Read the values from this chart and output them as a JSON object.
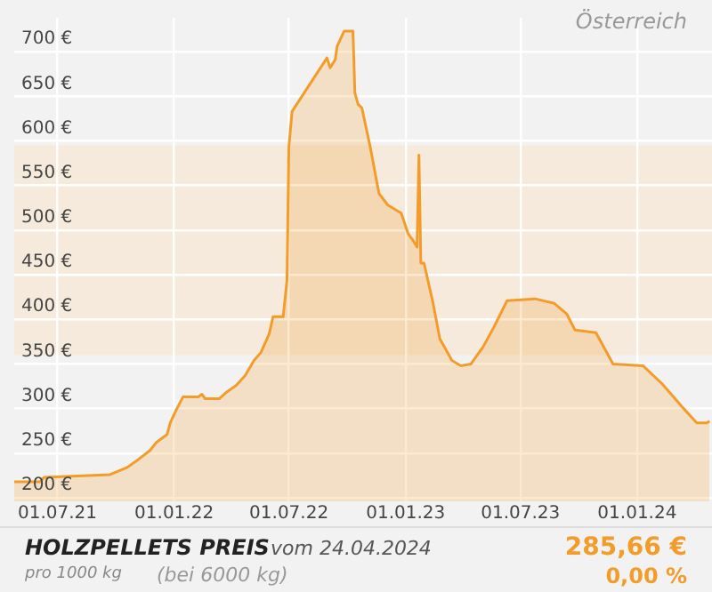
{
  "chart_data": {
    "type": "area",
    "title": "Österreich",
    "x": [
      "2021-04-24",
      "2021-06-04",
      "2021-06-10",
      "2021-09-22",
      "2021-10-19",
      "2021-11-02",
      "2021-11-24",
      "2021-12-04",
      "2021-12-21",
      "2021-12-26",
      "2022-01-04",
      "2022-01-15",
      "2022-02-08",
      "2022-02-14",
      "2022-02-19",
      "2022-03-13",
      "2022-03-24",
      "2022-04-09",
      "2022-04-23",
      "2022-05-07",
      "2022-05-18",
      "2022-05-31",
      "2022-06-06",
      "2022-06-22",
      "2022-06-28",
      "2022-07-01",
      "2022-07-06",
      "2022-08-30",
      "2022-09-04",
      "2022-09-12",
      "2022-09-15",
      "2022-09-26",
      "2022-10-10",
      "2022-10-13",
      "2022-10-18",
      "2022-10-24",
      "2022-11-06",
      "2022-11-20",
      "2022-12-04",
      "2022-12-25",
      "2023-01-05",
      "2023-01-14",
      "2023-01-19",
      "2023-01-22",
      "2023-01-25",
      "2023-01-30",
      "2023-02-13",
      "2023-02-24",
      "2023-03-15",
      "2023-03-29",
      "2023-04-14",
      "2023-05-03",
      "2023-05-20",
      "2023-06-10",
      "2023-07-24",
      "2023-08-23",
      "2023-09-12",
      "2023-09-25",
      "2023-10-28",
      "2023-11-24",
      "2024-01-10",
      "2024-02-09",
      "2024-03-13",
      "2024-04-04",
      "2024-04-20",
      "2024-04-24"
    ],
    "series": [
      {
        "color": "#f39c2a",
        "values": [
          218,
          218,
          223,
          226,
          234,
          241,
          253,
          262,
          271,
          284,
          298,
          313,
          313,
          316,
          311,
          311,
          318,
          326,
          337,
          354,
          363,
          384,
          403,
          403,
          444,
          594,
          633,
          693,
          682,
          691,
          706,
          723,
          723,
          654,
          641,
          637,
          594,
          541,
          528,
          519,
          496,
          487,
          481,
          584,
          463,
          463,
          419,
          378,
          354,
          348,
          350,
          369,
          391,
          421,
          423,
          418,
          406,
          388,
          385,
          350,
          348,
          328,
          301,
          284,
          284,
          286
        ]
      }
    ],
    "xlim": [
      "2021-04-24",
      "2024-04-28"
    ],
    "xticks": [
      {
        "value": "2021-07-01",
        "label": "01.07.21"
      },
      {
        "value": "2022-01-01",
        "label": "01.01.22"
      },
      {
        "value": "2022-07-01",
        "label": "01.07.22"
      },
      {
        "value": "2023-01-01",
        "label": "01.01.23"
      },
      {
        "value": "2023-07-01",
        "label": "01.07.23"
      },
      {
        "value": "2024-01-01",
        "label": "01.01.24"
      }
    ],
    "ylim": [
      196,
      738
    ],
    "yticks": [
      {
        "value": 200,
        "label": "200 €"
      },
      {
        "value": 250,
        "label": "250 €"
      },
      {
        "value": 300,
        "label": "300 €"
      },
      {
        "value": 350,
        "label": "350 €"
      },
      {
        "value": 400,
        "label": "400 €"
      },
      {
        "value": 450,
        "label": "450 €"
      },
      {
        "value": 500,
        "label": "500 €"
      },
      {
        "value": 550,
        "label": "550 €"
      },
      {
        "value": 600,
        "label": "600 €"
      },
      {
        "value": 650,
        "label": "650 €"
      },
      {
        "value": 700,
        "label": "700 €"
      }
    ],
    "bands": [
      {
        "axis": "y",
        "from": 360,
        "to": 595,
        "color": "#f5eadb"
      }
    ],
    "grid": true,
    "annotations": [
      "HOLZPELLETS PREIS",
      "vom 24.04.2024",
      "pro 1000 kg",
      "(bei 6000 kg)",
      "285,66 €",
      "0,00 %"
    ]
  }
}
